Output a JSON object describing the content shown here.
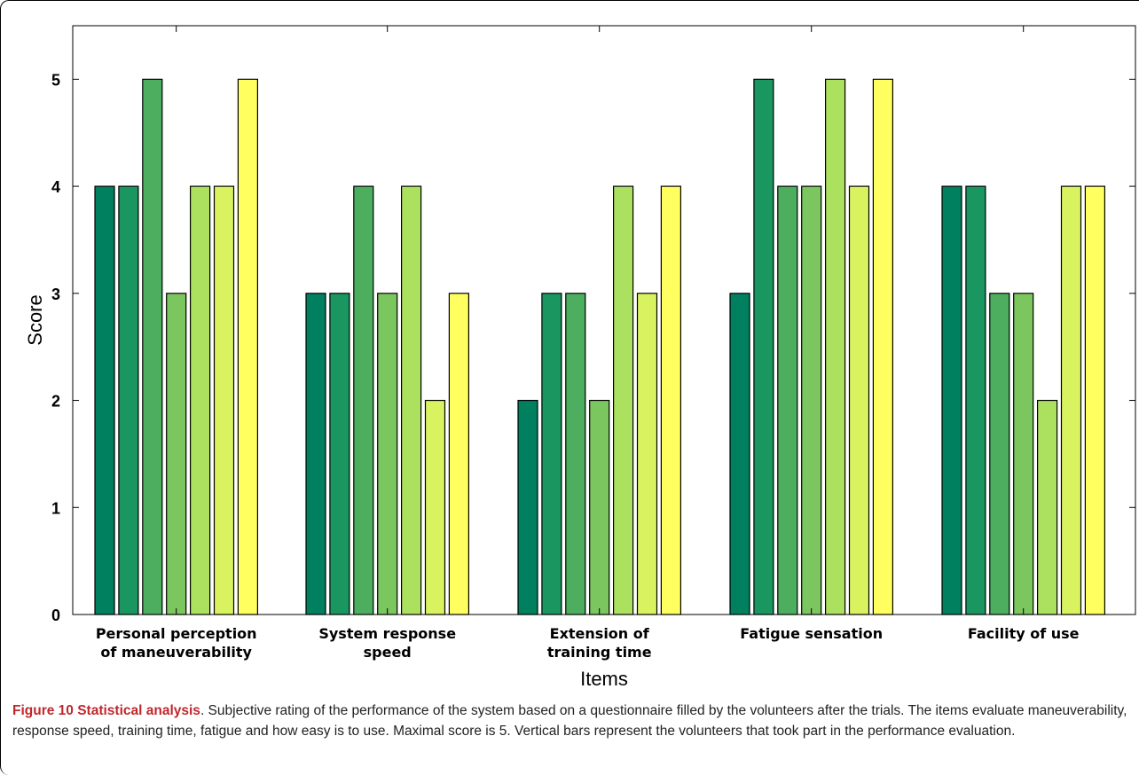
{
  "chart_data": {
    "type": "bar",
    "xlabel": "Items",
    "ylabel": "Score",
    "ylim": [
      0,
      5.5
    ],
    "yticks": [
      "0",
      "1",
      "2",
      "3",
      "4",
      "5"
    ],
    "categories": [
      [
        "Personal perception",
        "of maneuverability"
      ],
      [
        "System  response",
        "speed"
      ],
      [
        "Extension  of",
        "training time"
      ],
      [
        "Fatigue sensation"
      ],
      [
        "Facility of use"
      ]
    ],
    "values": [
      [
        4,
        4,
        5,
        3,
        4,
        4,
        5
      ],
      [
        3,
        3,
        4,
        3,
        4,
        2,
        3
      ],
      [
        2,
        3,
        3,
        2,
        4,
        3,
        4
      ],
      [
        3,
        5,
        4,
        4,
        5,
        4,
        5
      ],
      [
        4,
        4,
        3,
        3,
        2,
        4,
        4
      ]
    ],
    "bar_colors": [
      "#00805f",
      "#1a9660",
      "#4cae5e",
      "#7cc65f",
      "#ace05f",
      "#d9f25f",
      "#ffff5f"
    ],
    "grid": false,
    "legend": "none"
  },
  "caption": {
    "label": "Figure 10 Statistical analysis",
    "text": ". Subjective rating of the performance of the system based on a questionnaire filled by the volunteers after the trials. The items evaluate maneuverability, response speed, training time, fatigue and how easy is to use. Maximal score is 5. Vertical bars represent the volunteers that took part in the performance evaluation."
  }
}
